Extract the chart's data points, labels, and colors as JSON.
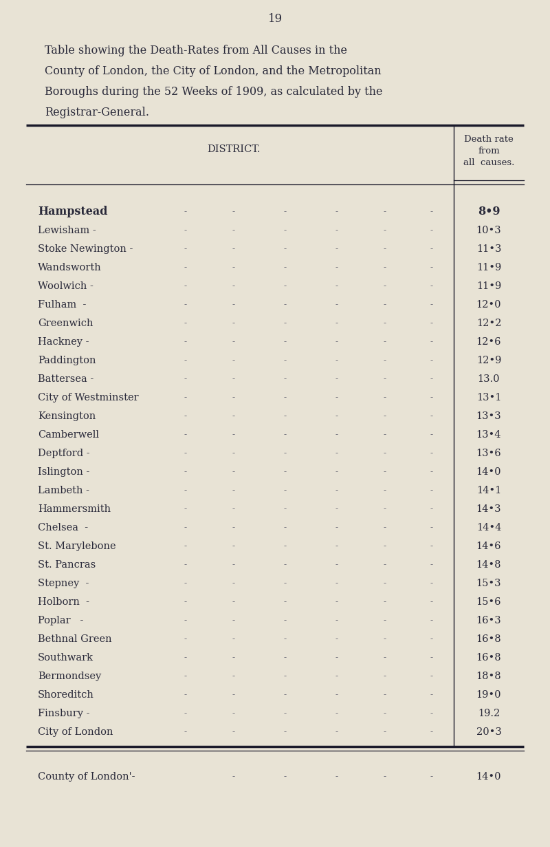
{
  "page_number": "19",
  "title_line1": "Table showing the Death-Rates from All Causes in the",
  "title_line2": "County of London, the City of London, and the Metropolitan",
  "title_line3": "Boroughs during the 52 Weeks of 1909, as calculated by the",
  "title_line4": "Registrar-General.",
  "col_header_left": "DISTRICT.",
  "col_header_right_1": "Death rate",
  "col_header_right_2": "from",
  "col_header_right_3": "all  causes.",
  "districts": [
    "Hampstead",
    "Lewisham -",
    "Stoke Newington -",
    "Wandsworth",
    "Woolwich -",
    "Fulham  -",
    "Greenwich",
    "Hackney -",
    "Paddington",
    "Battersea -",
    "City of Westminster",
    "Kensington",
    "Camberwell",
    "Deptford -",
    "Islington -",
    "Lambeth -",
    "Hammersmith",
    "Chelsea  -",
    "St. Marylebone",
    "St. Pancras",
    "Stepney  -",
    "Holborn  -",
    "Poplar   -",
    "Bethnal Green",
    "Southwark",
    "Bermondsey",
    "Shoreditch",
    "Finsbury -",
    "City of London"
  ],
  "rates": [
    "8•9",
    "10•3",
    "11•3",
    "11•9",
    "11•9",
    "12•0",
    "12•2",
    "12•6",
    "12•9",
    "13.0",
    "13•1",
    "13•3",
    "13•4",
    "13•6",
    "14•0",
    "14•1",
    "14•3",
    "14•4",
    "14•6",
    "14•8",
    "15•3",
    "15•6",
    "16•3",
    "16•8",
    "16•8",
    "18•8",
    "19•0",
    "19.2",
    "20•3"
  ],
  "footer_district": "County of London'-",
  "footer_rate": "14•0",
  "background_color": "#e8e3d5",
  "text_color": "#2a2a3a",
  "dash_color": "#5a5a6a",
  "line_color": "#1a1a2a"
}
